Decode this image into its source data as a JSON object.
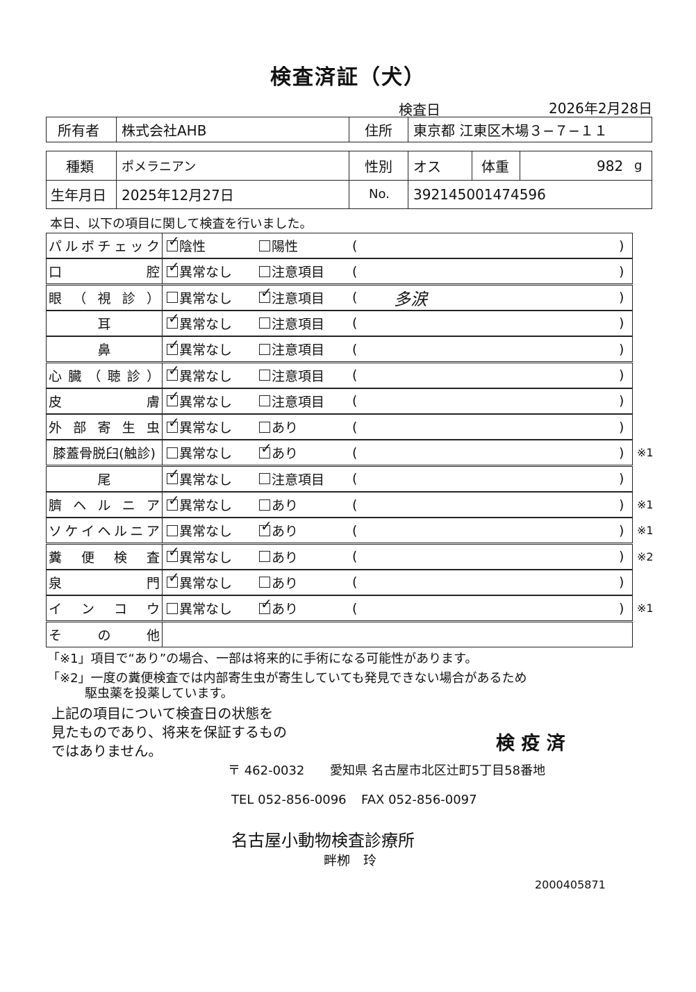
{
  "title": "検査済証（犬）",
  "exam_date_label": "検査日",
  "exam_date": "2026年2月28日",
  "owner": {
    "label": "所有者",
    "value": "株式会社AHB",
    "address_label": "住所",
    "address": "東京都 江東区木場３−７−１１"
  },
  "pet": {
    "breed_label": "種類",
    "breed": "ポメラニアン",
    "sex_label": "性別",
    "sex": "オス",
    "weight_label": "体重",
    "weight": "982",
    "weight_unit": "g",
    "birth_label": "生年月日",
    "birth": "2025年12月27日",
    "no_label": "No.",
    "no": "392145001474596"
  },
  "intro": "本日、以下の項目に関して検査を行いました。",
  "paren_open": "(",
  "paren_close": ")",
  "checks": [
    {
      "label": [
        "パ",
        "ル",
        "ボ",
        "チ",
        "ェ",
        "ッ",
        "ク"
      ],
      "opt1": "陰性",
      "opt2": "陽性",
      "checked": 1,
      "note": "",
      "mark": ""
    },
    {
      "label": [
        "口",
        "",
        "",
        "",
        "腔"
      ],
      "opt1": "異常なし",
      "opt2": "注意項目",
      "checked": 1,
      "note": "",
      "mark": ""
    },
    {
      "label": [
        "眼",
        "（",
        "視",
        "診",
        "）"
      ],
      "opt1": "異常なし",
      "opt2": "注意項目",
      "checked": 2,
      "note": "多涙",
      "mark": ""
    },
    {
      "label": [
        "耳"
      ],
      "opt1": "異常なし",
      "opt2": "注意項目",
      "checked": 1,
      "note": "",
      "mark": ""
    },
    {
      "label": [
        "鼻"
      ],
      "opt1": "異常なし",
      "opt2": "注意項目",
      "checked": 1,
      "note": "",
      "mark": ""
    },
    {
      "label": [
        "心",
        "臓",
        "（",
        "聴",
        "診",
        "）"
      ],
      "opt1": "異常なし",
      "opt2": "注意項目",
      "checked": 1,
      "note": "",
      "mark": ""
    },
    {
      "label": [
        "皮",
        "",
        "",
        "",
        "膚"
      ],
      "opt1": "異常なし",
      "opt2": "注意項目",
      "checked": 1,
      "note": "",
      "mark": ""
    },
    {
      "label": [
        "外",
        "部",
        "寄",
        "生",
        "虫"
      ],
      "opt1": "異常なし",
      "opt2": "あり",
      "checked": 1,
      "note": "",
      "mark": ""
    },
    {
      "label": [
        "膝蓋骨脱臼(触診)"
      ],
      "opt1": "異常なし",
      "opt2": "あり",
      "checked": 2,
      "note": "",
      "mark": "※1"
    },
    {
      "label": [
        "尾"
      ],
      "opt1": "異常なし",
      "opt2": "注意項目",
      "checked": 1,
      "note": "",
      "mark": ""
    },
    {
      "label": [
        "臍",
        "ヘ",
        "ル",
        "ニ",
        "ア"
      ],
      "opt1": "異常なし",
      "opt2": "あり",
      "checked": 1,
      "note": "",
      "mark": "※1"
    },
    {
      "label": [
        "ソ",
        "ケ",
        "イ",
        "ヘ",
        "ル",
        "ニ",
        "ア"
      ],
      "opt1": "異常なし",
      "opt2": "あり",
      "checked": 2,
      "note": "",
      "mark": "※1"
    },
    {
      "label": [
        "糞",
        "便",
        "検",
        "査"
      ],
      "opt1": "異常なし",
      "opt2": "あり",
      "checked": 1,
      "note": "",
      "mark": "※2"
    },
    {
      "label": [
        "泉",
        "",
        "",
        "",
        "門"
      ],
      "opt1": "異常なし",
      "opt2": "あり",
      "checked": 1,
      "note": "",
      "mark": ""
    },
    {
      "label": [
        "イ",
        "ン",
        "コ",
        "ウ"
      ],
      "opt1": "異常なし",
      "opt2": "あり",
      "checked": 2,
      "note": "",
      "mark": "※1"
    }
  ],
  "other_label": [
    "そ",
    "の",
    "他"
  ],
  "footnote1": "「※1」項目で“あり”の場合、一部は将来的に手術になる可能性があります。",
  "footnote2_line1": "「※2」一度の糞便検査では内部寄生虫が寄生していても発見できない場合があるため",
  "footnote2_line2": "駆虫薬を投薬しています。",
  "disclaimer": [
    "上記の項目について検査日の状態を",
    "見たものであり、将来を保証するもの",
    "ではありません。"
  ],
  "stamp": "検 疫 済",
  "clinic": {
    "postal": "〒 462-0032",
    "address": "愛知県 名古屋市北区辻町5丁目58番地",
    "tel": "TEL 052-856-0096",
    "fax": "FAX 052-856-0097",
    "name": "名古屋小動物検査診療所",
    "doctor": "畔栁　玲"
  },
  "serial": "2000405871"
}
